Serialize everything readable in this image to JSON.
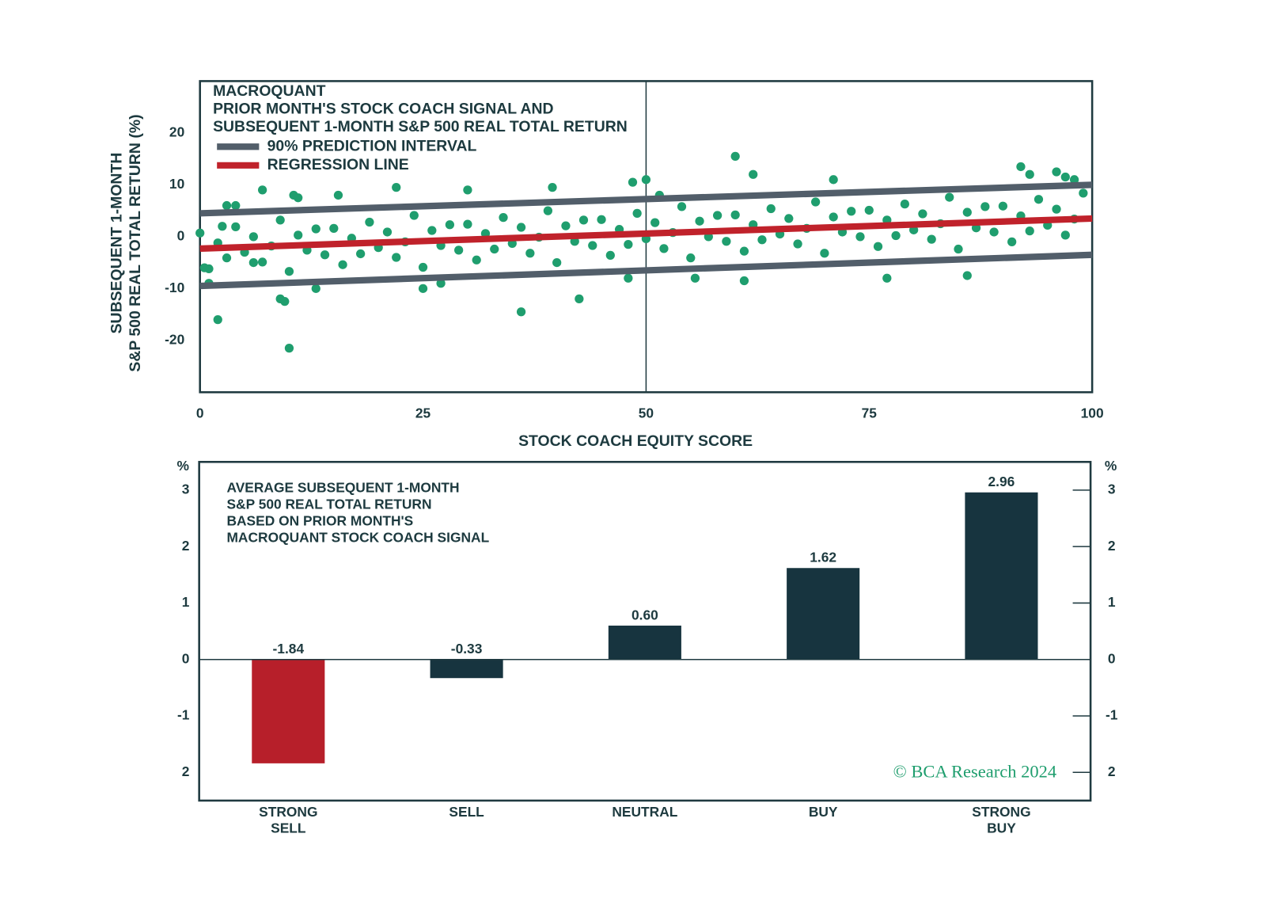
{
  "chart_data": [
    {
      "type": "scatter",
      "title": [
        "MACROQUANT",
        "PRIOR MONTH'S STOCK COACH SIGNAL AND",
        "SUBSEQUENT 1-MONTH S&P 500 REAL TOTAL RETURN"
      ],
      "ylabel": [
        "SUBSEQUENT 1-MONTH",
        "S&P 500 REAL TOTAL RETURN (%)"
      ],
      "xlabel": "STOCK COACH EQUITY SCORE",
      "xlim": [
        0,
        100
      ],
      "xticks": [
        0,
        25,
        50,
        75,
        100
      ],
      "ylim": [
        -30,
        30
      ],
      "yticks": [
        -20,
        -10,
        0,
        10,
        20
      ],
      "vline": 50,
      "points": {
        "color": "#1f9e6e",
        "x": [
          0,
          1,
          2,
          3,
          4,
          5,
          6,
          7,
          8,
          9,
          10,
          11,
          12,
          13,
          14,
          15,
          16,
          17,
          18,
          19,
          20,
          21,
          22,
          23,
          24,
          25,
          26,
          27,
          28,
          29,
          30,
          31,
          32,
          33,
          34,
          35,
          36,
          37,
          38,
          39,
          40,
          41,
          42,
          43,
          44,
          45,
          46,
          47,
          48,
          49,
          50,
          51,
          52,
          53,
          54,
          55,
          56,
          57,
          58,
          59,
          60,
          61,
          62,
          63,
          64,
          65,
          66,
          67,
          68,
          69,
          70,
          71,
          72,
          73,
          74,
          75,
          76,
          77,
          78,
          79,
          80,
          81,
          82,
          83,
          84,
          85,
          86,
          87,
          88,
          89,
          90,
          91,
          92,
          93,
          94,
          95,
          96,
          97,
          98,
          99,
          0.5,
          1,
          2,
          2.5,
          3,
          4,
          6,
          7,
          9,
          9.5,
          10,
          10.5,
          11,
          13,
          15.5,
          22,
          25,
          27,
          30,
          36,
          39.5,
          42.5,
          48,
          48.5,
          50,
          51.5,
          55.5,
          60,
          61,
          62,
          71,
          77,
          86,
          92,
          93,
          96,
          97,
          98
        ],
        "y": [
          0.7,
          -6.2,
          -1.2,
          -4.1,
          1.9,
          -3.0,
          0.0,
          -4.9,
          -1.8,
          3.2,
          -6.7,
          0.3,
          -2.6,
          1.5,
          -3.5,
          1.6,
          -5.4,
          -0.3,
          -3.3,
          2.8,
          -2.1,
          0.9,
          -4.0,
          -1.0,
          4.1,
          -5.9,
          1.2,
          -1.7,
          2.3,
          -2.6,
          2.4,
          -4.5,
          0.6,
          -2.4,
          3.7,
          -1.3,
          1.8,
          -3.2,
          -0.1,
          5.0,
          -5.0,
          2.1,
          -0.9,
          3.2,
          -1.7,
          3.3,
          -3.6,
          1.4,
          -1.5,
          4.5,
          -0.4,
          2.7,
          -2.3,
          0.8,
          5.8,
          -4.1,
          3.0,
          0.0,
          4.1,
          -0.9,
          4.2,
          -2.8,
          2.3,
          -0.6,
          5.4,
          0.5,
          3.5,
          -1.4,
          1.6,
          6.7,
          -3.2,
          3.8,
          0.9,
          4.9,
          0.0,
          5.1,
          -1.9,
          3.2,
          0.2,
          6.3,
          1.3,
          4.4,
          -0.5,
          2.5,
          7.6,
          -2.4,
          4.7,
          1.7,
          5.8,
          0.9,
          5.9,
          -1.0,
          4.0,
          1.1,
          7.2,
          2.2,
          5.3,
          0.3,
          3.4,
          8.4,
          -6,
          -9,
          -16,
          2,
          6,
          6,
          -5,
          9,
          -12,
          -12.5,
          -21.5,
          8,
          7.5,
          -10,
          8,
          9.5,
          -10,
          -9,
          9,
          -14.5,
          9.5,
          -12,
          -8,
          10.5,
          11,
          8,
          -8,
          15.5,
          -8.5,
          12,
          11,
          -8,
          -7.5,
          13.5,
          12,
          12.5,
          11.5,
          11
        ]
      },
      "series": [
        {
          "name": "90% PREDICTION INTERVAL",
          "color": "#525e6a",
          "x": [
            0,
            100
          ],
          "upper": [
            4.5,
            10
          ],
          "lower": [
            -9.5,
            -3.5
          ]
        },
        {
          "name": "REGRESSION LINE",
          "color": "#c0222b",
          "x": [
            0,
            100
          ],
          "values": [
            -2.3,
            3.5
          ]
        }
      ]
    },
    {
      "type": "bar",
      "title": [
        "AVERAGE SUBSEQUENT 1-MONTH",
        "S&P 500 REAL TOTAL RETURN",
        "BASED ON PRIOR MONTH'S",
        "MACROQUANT STOCK COACH SIGNAL"
      ],
      "ylabel": "%",
      "y2label": "%",
      "categories": [
        [
          "STRONG",
          "SELL"
        ],
        [
          "SELL"
        ],
        [
          "NEUTRAL"
        ],
        [
          "BUY"
        ],
        [
          "STRONG",
          "BUY"
        ]
      ],
      "values": [
        -1.84,
        -0.33,
        0.6,
        1.62,
        2.96
      ],
      "value_labels": [
        "-1.84",
        "-0.33",
        "0.60",
        "1.62",
        "2.96"
      ],
      "colors": [
        "#b71f2a",
        "#17343f",
        "#17343f",
        "#17343f",
        "#17343f"
      ],
      "ylim": [
        -2.5,
        3.5
      ],
      "yticks": [
        3,
        2,
        1,
        0,
        -1,
        {
          "value": -2,
          "label": "2"
        }
      ],
      "y2lim": [
        -2.5,
        3.5
      ],
      "y2ticks": [
        3,
        2,
        1,
        0,
        -1,
        {
          "value": -2,
          "label": "2"
        }
      ],
      "annotation": "© BCA Research 2024"
    }
  ]
}
